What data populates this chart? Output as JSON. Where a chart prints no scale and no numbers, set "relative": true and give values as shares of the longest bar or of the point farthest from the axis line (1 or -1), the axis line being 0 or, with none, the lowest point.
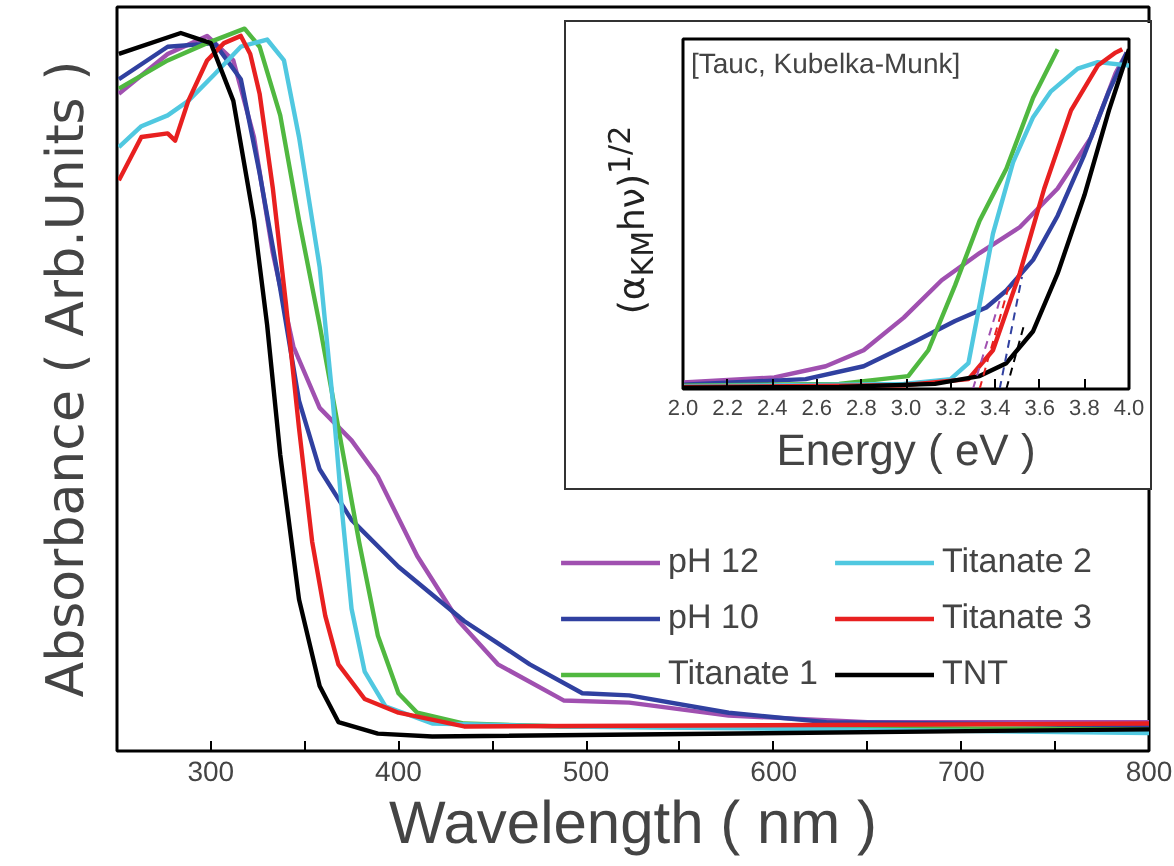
{
  "chart_data": [
    {
      "type": "line",
      "xlabel": "Wavelength ( nm )",
      "ylabel": "Absorbance ( Arb.Units )",
      "relative": true,
      "xlim": [
        250,
        800
      ],
      "xticks": [
        300,
        {
          "value": 350,
          "label": null
        },
        400,
        {
          "value": 450,
          "label": null
        },
        500,
        {
          "value": 550,
          "label": null
        },
        600,
        {
          "value": 650,
          "label": null
        },
        700,
        {
          "value": 750,
          "label": null
        },
        800
      ],
      "grid": false,
      "legend": "bottom right",
      "marker": "none",
      "line_style": "solid",
      "series": [
        {
          "name": "pH 12",
          "color": "#a050b0",
          "x": [
            251,
            277,
            298,
            312,
            323,
            333,
            344,
            358,
            375,
            389,
            410,
            432,
            453,
            488,
            523,
            576,
            650,
            800
          ],
          "values": [
            0.91,
            0.965,
            0.99,
            0.956,
            0.85,
            0.69,
            0.56,
            0.475,
            0.43,
            0.38,
            0.27,
            0.18,
            0.12,
            0.07,
            0.067,
            0.049,
            0.04,
            0.04
          ]
        },
        {
          "name": "pH 10",
          "color": "#3040a0",
          "x": [
            251,
            277,
            302,
            316,
            326,
            337,
            347,
            358,
            375,
            400,
            435,
            470,
            498,
            523,
            576,
            628,
            800
          ],
          "values": [
            0.93,
            0.975,
            0.98,
            0.93,
            0.8,
            0.64,
            0.485,
            0.39,
            0.32,
            0.255,
            0.18,
            0.12,
            0.08,
            0.077,
            0.053,
            0.04,
            0.035
          ]
        },
        {
          "name": "Titanate 1",
          "color": "#50b840",
          "x": [
            251,
            277,
            298,
            318,
            326,
            337,
            347,
            358,
            368,
            379,
            389,
            400,
            410,
            435,
            488,
            800
          ],
          "values": [
            0.917,
            0.956,
            0.98,
            1.0,
            0.975,
            0.88,
            0.735,
            0.59,
            0.447,
            0.29,
            0.16,
            0.08,
            0.053,
            0.038,
            0.034,
            0.03
          ]
        },
        {
          "name": "Titanate 2",
          "color": "#50c8e0",
          "x": [
            251,
            263,
            277,
            288,
            302,
            316,
            330,
            339,
            347,
            358,
            365,
            370,
            375,
            382,
            393,
            418,
            488,
            800
          ],
          "values": [
            0.836,
            0.865,
            0.88,
            0.9,
            0.937,
            0.975,
            0.985,
            0.956,
            0.85,
            0.67,
            0.485,
            0.33,
            0.197,
            0.11,
            0.062,
            0.038,
            0.034,
            0.025
          ]
        },
        {
          "name": "Titanate 3",
          "color": "#e82020",
          "x": [
            251,
            263,
            277,
            281,
            288,
            298,
            307,
            316,
            321,
            326,
            333,
            340,
            347,
            354,
            361,
            368,
            382,
            400,
            435,
            800
          ],
          "values": [
            0.79,
            0.85,
            0.855,
            0.845,
            0.9,
            0.956,
            0.98,
            0.99,
            0.965,
            0.91,
            0.78,
            0.62,
            0.447,
            0.29,
            0.187,
            0.12,
            0.072,
            0.053,
            0.034,
            0.038
          ]
        },
        {
          "name": "TNT",
          "color": "#000000",
          "x": [
            251,
            284,
            300,
            312,
            323,
            330,
            337,
            347,
            358,
            368,
            389,
            418,
            800
          ],
          "values": [
            0.965,
            0.994,
            0.98,
            0.9,
            0.735,
            0.59,
            0.41,
            0.21,
            0.09,
            0.04,
            0.024,
            0.02,
            0.03
          ]
        }
      ]
    },
    {
      "type": "line",
      "xlabel": "Energy ( eV )",
      "ylabel": "(α$_{KM}$hν)$^{1/2}$",
      "relative": true,
      "xlim": [
        2.0,
        4.0
      ],
      "xticks": [
        {
          "value": 2,
          "label": "2.0"
        },
        2.2,
        2.4,
        2.6,
        2.8,
        {
          "value": 3,
          "label": "3.0"
        },
        3.2,
        3.4,
        3.6,
        3.8,
        {
          "value": 4,
          "label": "4.0"
        }
      ],
      "annotations": [
        "[Tauc, Kubelka-Munk]"
      ],
      "grid": false,
      "marker": "none",
      "line_style": "solid",
      "series": [
        {
          "color": "#a050b0",
          "x": [
            2.0,
            2.41,
            2.64,
            2.81,
            2.99,
            3.16,
            3.33,
            3.51,
            3.68,
            3.83,
            3.94,
            3.99
          ],
          "values": [
            0.019,
            0.034,
            0.067,
            0.114,
            0.21,
            0.32,
            0.4,
            0.476,
            0.59,
            0.74,
            0.93,
            0.99
          ]
        },
        {
          "color": "#3040a0",
          "x": [
            2.0,
            2.55,
            2.81,
            3.04,
            3.22,
            3.36,
            3.45,
            3.57,
            3.68,
            3.8,
            3.91,
            3.99
          ],
          "values": [
            0.013,
            0.029,
            0.067,
            0.14,
            0.2,
            0.24,
            0.29,
            0.38,
            0.51,
            0.69,
            0.876,
            0.99
          ]
        },
        {
          "color": "#50b840",
          "x": [
            2.0,
            2.7,
            3.01,
            3.1,
            3.22,
            3.33,
            3.45,
            3.57,
            3.68
          ],
          "values": [
            0.01,
            0.015,
            0.038,
            0.114,
            0.305,
            0.495,
            0.648,
            0.857,
            1.0
          ]
        },
        {
          "color": "#50c8e0",
          "x": [
            2.0,
            2.99,
            3.2,
            3.28,
            3.33,
            3.39,
            3.48,
            3.57,
            3.65,
            3.77,
            3.86,
            4.0
          ],
          "values": [
            0.008,
            0.015,
            0.029,
            0.076,
            0.248,
            0.457,
            0.667,
            0.8,
            0.876,
            0.943,
            0.962,
            0.952
          ]
        },
        {
          "color": "#e82020",
          "x": [
            2.0,
            2.99,
            3.28,
            3.39,
            3.51,
            3.62,
            3.74,
            3.86,
            3.94,
            3.97
          ],
          "values": [
            0.006,
            0.011,
            0.029,
            0.114,
            0.34,
            0.59,
            0.82,
            0.952,
            0.99,
            1.0
          ]
        },
        {
          "color": "#000000",
          "x": [
            2.0,
            2.7,
            3.13,
            3.33,
            3.45,
            3.57,
            3.68,
            3.8,
            3.91,
            4.0
          ],
          "values": [
            0.004,
            0.006,
            0.015,
            0.038,
            0.076,
            0.17,
            0.34,
            0.57,
            0.82,
            1.0
          ]
        },
        {
          "color": "#000000",
          "line_style": "dashed",
          "x": [
            3.45,
            3.53
          ],
          "values": [
            0.0,
            0.19
          ]
        },
        {
          "color": "#3040a0",
          "line_style": "dashed",
          "x": [
            3.42,
            3.52
          ],
          "values": [
            0.0,
            0.33
          ]
        },
        {
          "color": "#e82020",
          "line_style": "dashed",
          "x": [
            3.33,
            3.46
          ],
          "values": [
            0.0,
            0.3
          ]
        },
        {
          "color": "#a050b0",
          "line_style": "dashed",
          "x": [
            3.3,
            3.42
          ],
          "values": [
            0.0,
            0.26
          ]
        }
      ]
    }
  ]
}
